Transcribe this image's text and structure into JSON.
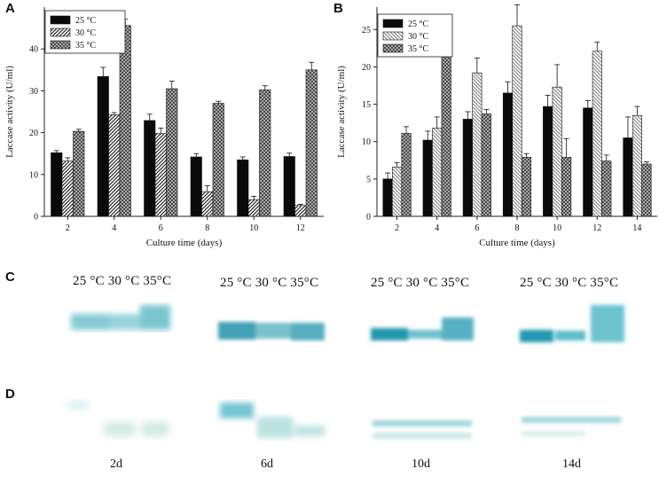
{
  "panels": {
    "a": "A",
    "b": "B",
    "c": "C",
    "d": "D"
  },
  "chart_data": [
    {
      "id": "A",
      "type": "bar",
      "title": "",
      "xlabel": "Culture time (days)",
      "ylabel": "Laccase activity (U/ml)",
      "ylim": [
        0,
        50
      ],
      "yticks": [
        0,
        10,
        20,
        30,
        40
      ],
      "categories": [
        "2",
        "4",
        "6",
        "8",
        "10",
        "12"
      ],
      "legend_position": "top-left",
      "series": [
        {
          "name": "25 °C",
          "values": [
            15.2,
            33.4,
            22.9,
            14.2,
            13.5,
            14.3
          ],
          "errors": [
            0.5,
            2.2,
            1.5,
            0.8,
            0.7,
            0.8
          ]
        },
        {
          "name": "30 °C",
          "values": [
            13.2,
            24.3,
            19.8,
            5.9,
            4.0,
            2.6
          ],
          "errors": [
            0.8,
            0.5,
            1.3,
            1.4,
            0.8,
            0.3
          ]
        },
        {
          "name": "35 °C",
          "values": [
            20.3,
            45.6,
            30.5,
            27.0,
            30.2,
            35.0
          ],
          "errors": [
            0.5,
            1.5,
            1.8,
            0.5,
            1.0,
            1.8
          ]
        }
      ]
    },
    {
      "id": "B",
      "type": "bar",
      "title": "",
      "xlabel": "Culture time (days)",
      "ylabel": "Laccase activity (U/ml)",
      "ylim": [
        0,
        28
      ],
      "yticks": [
        0,
        5,
        10,
        15,
        20,
        25
      ],
      "categories": [
        "2",
        "4",
        "6",
        "8",
        "10",
        "12",
        "14"
      ],
      "legend_position": "top-left",
      "series": [
        {
          "name": "25 °C",
          "values": [
            5.0,
            10.2,
            13.0,
            16.5,
            14.7,
            14.5,
            10.5
          ],
          "errors": [
            0.8,
            1.2,
            1.0,
            1.5,
            1.5,
            1.0,
            2.8
          ]
        },
        {
          "name": "30 °C",
          "values": [
            6.6,
            11.8,
            19.2,
            25.5,
            17.3,
            22.1,
            13.5
          ],
          "errors": [
            0.6,
            1.5,
            2.0,
            2.8,
            3.0,
            1.2,
            1.2
          ]
        },
        {
          "name": "35 °C",
          "values": [
            11.1,
            22.8,
            13.7,
            7.9,
            7.9,
            7.4,
            7.0
          ],
          "errors": [
            0.9,
            1.3,
            0.6,
            0.5,
            2.5,
            0.8,
            0.3
          ]
        }
      ]
    }
  ],
  "gel_c": {
    "headers": [
      "25 °C 30 °C 35°C",
      "25 °C 30 °C 35°C",
      "25 °C 30 °C 35°C",
      "25 °C 30 °C 35°C"
    ]
  },
  "gel_d": {
    "days": [
      "2d",
      "6d",
      "10d",
      "14d"
    ]
  }
}
